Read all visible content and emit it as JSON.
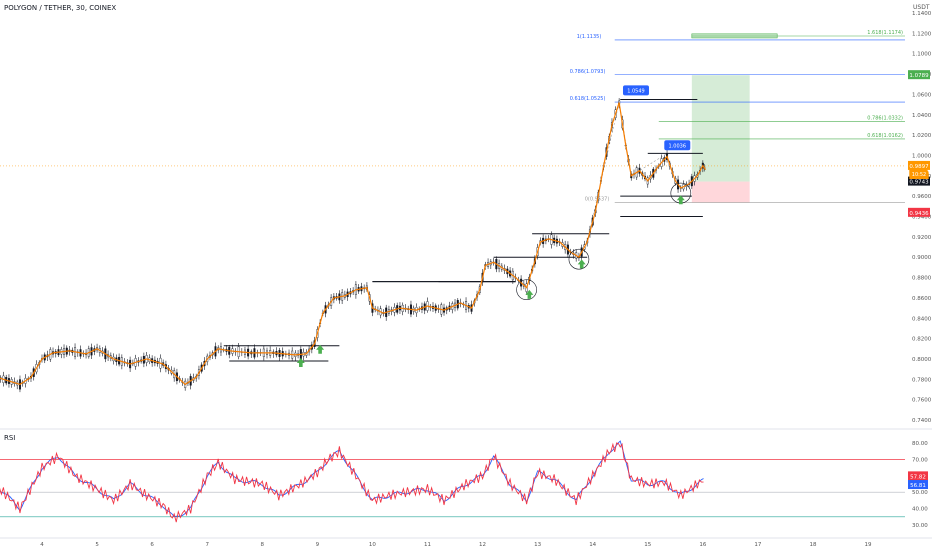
{
  "header": {
    "title": "POLYGON / TETHER, 30, COINEX",
    "unit": "USDT"
  },
  "chart_data": {
    "type": "line",
    "title": "POLYGON / TETHER, 30, COINEX",
    "price_axis": {
      "min": 0.74,
      "max": 1.14,
      "ticks": [
        "1.1400",
        "1.1200",
        "1.1000",
        "1.0800",
        "1.0600",
        "1.0400",
        "1.0200",
        "1.0000",
        "0.9800",
        "0.9600",
        "0.9400",
        "0.9200",
        "0.9000",
        "0.8800",
        "0.8600",
        "0.8400",
        "0.8200",
        "0.8000",
        "0.7800",
        "0.7600",
        "0.7400"
      ]
    },
    "x_axis": {
      "ticks": [
        "4",
        "5",
        "6",
        "7",
        "8",
        "9",
        "10",
        "11",
        "12",
        "13",
        "14",
        "15",
        "16",
        "17",
        "18",
        "19"
      ]
    },
    "price_series": [
      [
        3.0,
        0.785
      ],
      [
        3.3,
        0.78
      ],
      [
        3.6,
        0.775
      ],
      [
        3.8,
        0.782
      ],
      [
        4.0,
        0.8
      ],
      [
        4.2,
        0.806
      ],
      [
        4.5,
        0.808
      ],
      [
        4.8,
        0.805
      ],
      [
        5.0,
        0.81
      ],
      [
        5.3,
        0.8
      ],
      [
        5.6,
        0.795
      ],
      [
        5.9,
        0.8
      ],
      [
        6.2,
        0.795
      ],
      [
        6.4,
        0.785
      ],
      [
        6.6,
        0.775
      ],
      [
        6.8,
        0.782
      ],
      [
        7.0,
        0.8
      ],
      [
        7.2,
        0.81
      ],
      [
        7.4,
        0.808
      ],
      [
        7.8,
        0.806
      ],
      [
        8.2,
        0.806
      ],
      [
        8.6,
        0.804
      ],
      [
        8.8,
        0.805
      ],
      [
        8.95,
        0.815
      ],
      [
        9.1,
        0.845
      ],
      [
        9.3,
        0.86
      ],
      [
        9.5,
        0.862
      ],
      [
        9.7,
        0.868
      ],
      [
        9.9,
        0.87
      ],
      [
        10.0,
        0.85
      ],
      [
        10.2,
        0.845
      ],
      [
        10.5,
        0.85
      ],
      [
        10.8,
        0.848
      ],
      [
        11.0,
        0.852
      ],
      [
        11.3,
        0.848
      ],
      [
        11.6,
        0.855
      ],
      [
        11.8,
        0.85
      ],
      [
        11.95,
        0.868
      ],
      [
        12.05,
        0.892
      ],
      [
        12.2,
        0.895
      ],
      [
        12.4,
        0.888
      ],
      [
        12.6,
        0.88
      ],
      [
        12.8,
        0.87
      ],
      [
        12.95,
        0.896
      ],
      [
        13.05,
        0.915
      ],
      [
        13.2,
        0.918
      ],
      [
        13.4,
        0.915
      ],
      [
        13.6,
        0.905
      ],
      [
        13.75,
        0.9
      ],
      [
        13.9,
        0.915
      ],
      [
        14.05,
        0.945
      ],
      [
        14.2,
        0.99
      ],
      [
        14.35,
        1.03
      ],
      [
        14.48,
        1.052
      ],
      [
        14.6,
        1.01
      ],
      [
        14.7,
        0.98
      ],
      [
        14.85,
        0.985
      ],
      [
        15.0,
        0.975
      ],
      [
        15.2,
        0.99
      ],
      [
        15.35,
        0.999
      ],
      [
        15.5,
        0.975
      ],
      [
        15.6,
        0.968
      ],
      [
        15.75,
        0.972
      ],
      [
        15.9,
        0.98
      ],
      [
        16.0,
        0.99
      ],
      [
        16.05,
        0.986
      ]
    ],
    "rsi_axis": {
      "min": 30,
      "max": 80,
      "ticks": [
        "80.00",
        "70.00",
        "60.00",
        "50.00",
        "40.00",
        "30.00"
      ]
    },
    "rsi_series": [
      [
        3.0,
        58
      ],
      [
        3.3,
        50
      ],
      [
        3.6,
        40
      ],
      [
        4.0,
        65
      ],
      [
        4.3,
        72
      ],
      [
        4.6,
        60
      ],
      [
        5.0,
        52
      ],
      [
        5.3,
        45
      ],
      [
        5.6,
        55
      ],
      [
        5.9,
        48
      ],
      [
        6.2,
        42
      ],
      [
        6.4,
        34
      ],
      [
        6.7,
        40
      ],
      [
        7.0,
        60
      ],
      [
        7.2,
        68
      ],
      [
        7.5,
        58
      ],
      [
        8.0,
        55
      ],
      [
        8.3,
        48
      ],
      [
        8.7,
        55
      ],
      [
        9.0,
        62
      ],
      [
        9.2,
        70
      ],
      [
        9.4,
        75
      ],
      [
        9.7,
        60
      ],
      [
        10.0,
        45
      ],
      [
        10.3,
        48
      ],
      [
        10.6,
        50
      ],
      [
        11.0,
        52
      ],
      [
        11.3,
        45
      ],
      [
        11.7,
        55
      ],
      [
        12.0,
        60
      ],
      [
        12.2,
        72
      ],
      [
        12.5,
        55
      ],
      [
        12.8,
        45
      ],
      [
        13.0,
        62
      ],
      [
        13.3,
        58
      ],
      [
        13.7,
        45
      ],
      [
        14.0,
        60
      ],
      [
        14.3,
        75
      ],
      [
        14.5,
        80
      ],
      [
        14.7,
        58
      ],
      [
        15.0,
        55
      ],
      [
        15.3,
        56
      ],
      [
        15.6,
        48
      ],
      [
        15.9,
        55
      ],
      [
        16.05,
        58
      ]
    ],
    "annotations": {
      "fib_labels": [
        "1(1.1135)",
        "1.618(1.1174)",
        "0.786(1.0793)",
        "0.618(1.0525)",
        "0.786(1.0332)",
        "0.618(1.0162)",
        "0(0.9537)"
      ],
      "callouts": [
        "1.0549",
        "1.0036"
      ],
      "price_tags": {
        "target": "1.0789",
        "current": "0.9897",
        "countdown": "10:52",
        "entry": "0.9743",
        "stop": "0.9436"
      },
      "rsi_tags": [
        "57.82",
        "56.81"
      ]
    },
    "colors": {
      "candle_up": "#26a69a",
      "candle_down": "#131722",
      "price_line": "#f57c00",
      "rsi_red": "#f23645",
      "rsi_blue": "#2962ff",
      "fib_blue": "#2962ff",
      "fib_green": "#4caf50",
      "target_box": "#c8e6c9",
      "stop_box": "#ffcdd2",
      "tag_green": "#4caf50",
      "tag_red": "#f23645",
      "tag_orange": "#ff9800",
      "tag_black": "#131722"
    }
  }
}
